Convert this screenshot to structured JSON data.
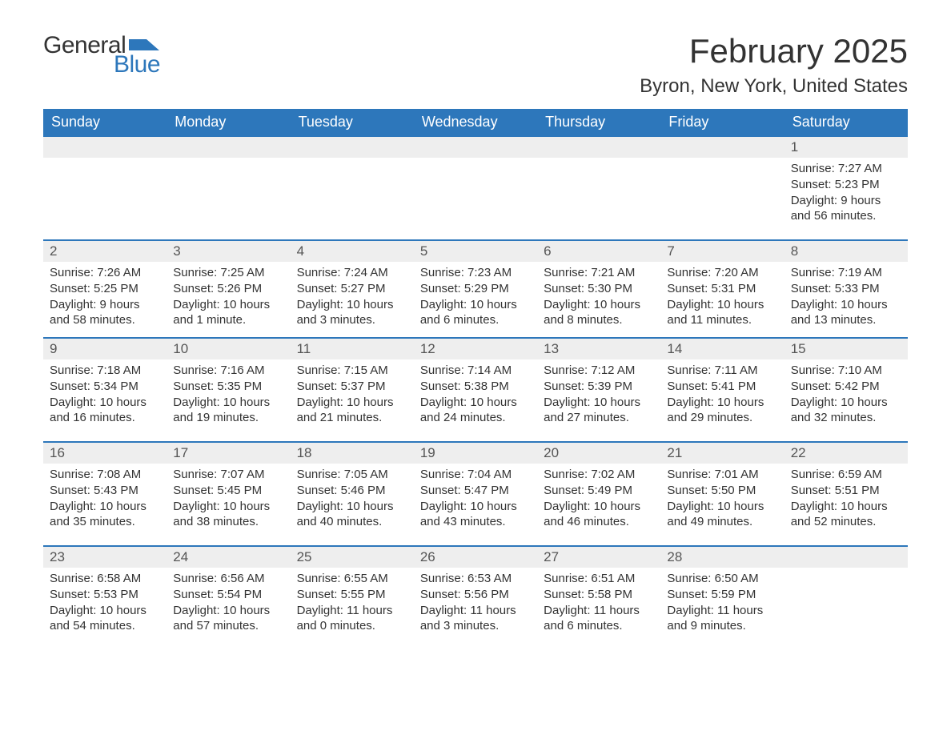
{
  "logo": {
    "word1": "General",
    "word2": "Blue",
    "accent_color": "#2d77bb"
  },
  "title": "February 2025",
  "location": "Byron, New York, United States",
  "header_bg": "#2d77bb",
  "header_fg": "#ffffff",
  "row_border_color": "#2d77bb",
  "daynum_bg": "#eeeeee",
  "columns": [
    "Sunday",
    "Monday",
    "Tuesday",
    "Wednesday",
    "Thursday",
    "Friday",
    "Saturday"
  ],
  "weeks": [
    [
      null,
      null,
      null,
      null,
      null,
      null,
      {
        "n": "1",
        "sunrise": "Sunrise: 7:27 AM",
        "sunset": "Sunset: 5:23 PM",
        "day1": "Daylight: 9 hours",
        "day2": "and 56 minutes."
      }
    ],
    [
      {
        "n": "2",
        "sunrise": "Sunrise: 7:26 AM",
        "sunset": "Sunset: 5:25 PM",
        "day1": "Daylight: 9 hours",
        "day2": "and 58 minutes."
      },
      {
        "n": "3",
        "sunrise": "Sunrise: 7:25 AM",
        "sunset": "Sunset: 5:26 PM",
        "day1": "Daylight: 10 hours",
        "day2": "and 1 minute."
      },
      {
        "n": "4",
        "sunrise": "Sunrise: 7:24 AM",
        "sunset": "Sunset: 5:27 PM",
        "day1": "Daylight: 10 hours",
        "day2": "and 3 minutes."
      },
      {
        "n": "5",
        "sunrise": "Sunrise: 7:23 AM",
        "sunset": "Sunset: 5:29 PM",
        "day1": "Daylight: 10 hours",
        "day2": "and 6 minutes."
      },
      {
        "n": "6",
        "sunrise": "Sunrise: 7:21 AM",
        "sunset": "Sunset: 5:30 PM",
        "day1": "Daylight: 10 hours",
        "day2": "and 8 minutes."
      },
      {
        "n": "7",
        "sunrise": "Sunrise: 7:20 AM",
        "sunset": "Sunset: 5:31 PM",
        "day1": "Daylight: 10 hours",
        "day2": "and 11 minutes."
      },
      {
        "n": "8",
        "sunrise": "Sunrise: 7:19 AM",
        "sunset": "Sunset: 5:33 PM",
        "day1": "Daylight: 10 hours",
        "day2": "and 13 minutes."
      }
    ],
    [
      {
        "n": "9",
        "sunrise": "Sunrise: 7:18 AM",
        "sunset": "Sunset: 5:34 PM",
        "day1": "Daylight: 10 hours",
        "day2": "and 16 minutes."
      },
      {
        "n": "10",
        "sunrise": "Sunrise: 7:16 AM",
        "sunset": "Sunset: 5:35 PM",
        "day1": "Daylight: 10 hours",
        "day2": "and 19 minutes."
      },
      {
        "n": "11",
        "sunrise": "Sunrise: 7:15 AM",
        "sunset": "Sunset: 5:37 PM",
        "day1": "Daylight: 10 hours",
        "day2": "and 21 minutes."
      },
      {
        "n": "12",
        "sunrise": "Sunrise: 7:14 AM",
        "sunset": "Sunset: 5:38 PM",
        "day1": "Daylight: 10 hours",
        "day2": "and 24 minutes."
      },
      {
        "n": "13",
        "sunrise": "Sunrise: 7:12 AM",
        "sunset": "Sunset: 5:39 PM",
        "day1": "Daylight: 10 hours",
        "day2": "and 27 minutes."
      },
      {
        "n": "14",
        "sunrise": "Sunrise: 7:11 AM",
        "sunset": "Sunset: 5:41 PM",
        "day1": "Daylight: 10 hours",
        "day2": "and 29 minutes."
      },
      {
        "n": "15",
        "sunrise": "Sunrise: 7:10 AM",
        "sunset": "Sunset: 5:42 PM",
        "day1": "Daylight: 10 hours",
        "day2": "and 32 minutes."
      }
    ],
    [
      {
        "n": "16",
        "sunrise": "Sunrise: 7:08 AM",
        "sunset": "Sunset: 5:43 PM",
        "day1": "Daylight: 10 hours",
        "day2": "and 35 minutes."
      },
      {
        "n": "17",
        "sunrise": "Sunrise: 7:07 AM",
        "sunset": "Sunset: 5:45 PM",
        "day1": "Daylight: 10 hours",
        "day2": "and 38 minutes."
      },
      {
        "n": "18",
        "sunrise": "Sunrise: 7:05 AM",
        "sunset": "Sunset: 5:46 PM",
        "day1": "Daylight: 10 hours",
        "day2": "and 40 minutes."
      },
      {
        "n": "19",
        "sunrise": "Sunrise: 7:04 AM",
        "sunset": "Sunset: 5:47 PM",
        "day1": "Daylight: 10 hours",
        "day2": "and 43 minutes."
      },
      {
        "n": "20",
        "sunrise": "Sunrise: 7:02 AM",
        "sunset": "Sunset: 5:49 PM",
        "day1": "Daylight: 10 hours",
        "day2": "and 46 minutes."
      },
      {
        "n": "21",
        "sunrise": "Sunrise: 7:01 AM",
        "sunset": "Sunset: 5:50 PM",
        "day1": "Daylight: 10 hours",
        "day2": "and 49 minutes."
      },
      {
        "n": "22",
        "sunrise": "Sunrise: 6:59 AM",
        "sunset": "Sunset: 5:51 PM",
        "day1": "Daylight: 10 hours",
        "day2": "and 52 minutes."
      }
    ],
    [
      {
        "n": "23",
        "sunrise": "Sunrise: 6:58 AM",
        "sunset": "Sunset: 5:53 PM",
        "day1": "Daylight: 10 hours",
        "day2": "and 54 minutes."
      },
      {
        "n": "24",
        "sunrise": "Sunrise: 6:56 AM",
        "sunset": "Sunset: 5:54 PM",
        "day1": "Daylight: 10 hours",
        "day2": "and 57 minutes."
      },
      {
        "n": "25",
        "sunrise": "Sunrise: 6:55 AM",
        "sunset": "Sunset: 5:55 PM",
        "day1": "Daylight: 11 hours",
        "day2": "and 0 minutes."
      },
      {
        "n": "26",
        "sunrise": "Sunrise: 6:53 AM",
        "sunset": "Sunset: 5:56 PM",
        "day1": "Daylight: 11 hours",
        "day2": "and 3 minutes."
      },
      {
        "n": "27",
        "sunrise": "Sunrise: 6:51 AM",
        "sunset": "Sunset: 5:58 PM",
        "day1": "Daylight: 11 hours",
        "day2": "and 6 minutes."
      },
      {
        "n": "28",
        "sunrise": "Sunrise: 6:50 AM",
        "sunset": "Sunset: 5:59 PM",
        "day1": "Daylight: 11 hours",
        "day2": "and 9 minutes."
      },
      null
    ]
  ]
}
